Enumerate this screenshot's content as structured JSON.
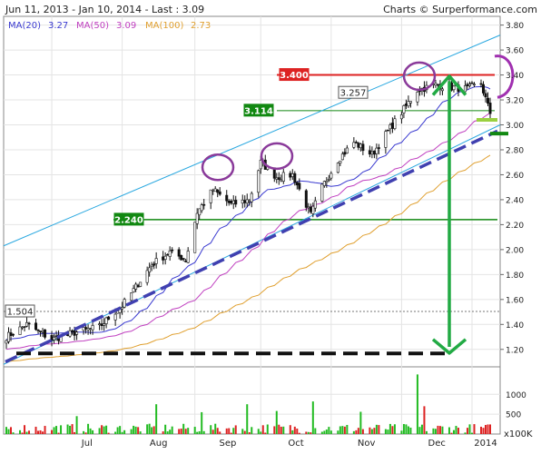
{
  "header": {
    "range_text": "Jun 11, 2013 - Jan 10, 2014 - Last : 3.09",
    "credit_text": "Charts © Surperformance.com"
  },
  "legend": [
    {
      "text": "MA(20)",
      "value": "3.27",
      "color": "#3a3ad0"
    },
    {
      "text": "MA(50)",
      "value": "3.09",
      "color": "#c040c0"
    },
    {
      "text": "MA(100)",
      "value": "2.73",
      "color": "#e0a030"
    }
  ],
  "chart_data": {
    "type": "candlestick",
    "x_ticks": [
      "Jul",
      "Aug",
      "Sep",
      "Oct",
      "Nov",
      "Dec",
      "2014"
    ],
    "y_ticks": [
      "3.80",
      "3.60",
      "3.40",
      "3.20",
      "3.00",
      "2.80",
      "2.60",
      "2.40",
      "2.20",
      "2.00",
      "1.80",
      "1.60",
      "1.40",
      "1.20"
    ],
    "ylim": [
      1.06,
      3.87
    ],
    "last": 3.09,
    "price_labels": [
      {
        "text": "3.400",
        "value": 3.4,
        "color": "#dd2222"
      },
      {
        "text": "3.257",
        "value": 3.257,
        "color": "#ffffff"
      },
      {
        "text": "3.114",
        "value": 3.114,
        "color": "#118811"
      },
      {
        "text": "2.240",
        "value": 2.24,
        "color": "#118811"
      },
      {
        "text": "1.504",
        "value": 1.504,
        "color": "#ffffff"
      }
    ],
    "price_anchors": {
      "dates": [
        "2013-06-11",
        "2013-06-20",
        "2013-07-01",
        "2013-07-10",
        "2013-07-22",
        "2013-07-30",
        "2013-08-01",
        "2013-08-07",
        "2013-08-14",
        "2013-08-22",
        "2013-08-29",
        "2013-09-03",
        "2013-09-10",
        "2013-09-18",
        "2013-09-26",
        "2013-10-01",
        "2013-10-08",
        "2013-10-15",
        "2013-10-23",
        "2013-10-28",
        "2013-11-04",
        "2013-11-11",
        "2013-11-19",
        "2013-11-26",
        "2013-12-02",
        "2013-12-09",
        "2013-12-17",
        "2013-12-24",
        "2013-12-31",
        "2014-01-06",
        "2014-01-10"
      ],
      "close": [
        1.3,
        1.4,
        1.28,
        1.33,
        1.38,
        1.52,
        1.55,
        1.7,
        1.88,
        1.98,
        1.92,
        2.3,
        2.48,
        2.36,
        2.4,
        2.7,
        2.58,
        2.6,
        2.28,
        2.5,
        2.72,
        2.86,
        2.76,
        2.95,
        3.1,
        3.28,
        3.32,
        3.3,
        3.29,
        3.33,
        3.09
      ]
    },
    "volume": {
      "unit": "x100K",
      "y_ticks": [
        "1000",
        "500"
      ],
      "spikes": [
        {
          "date": "2013-07-12",
          "value": 450
        },
        {
          "date": "2013-08-16",
          "value": 750
        },
        {
          "date": "2013-09-05",
          "value": 550
        },
        {
          "date": "2013-09-25",
          "value": 750
        },
        {
          "date": "2013-10-08",
          "value": 580
        },
        {
          "date": "2013-10-24",
          "value": 820
        },
        {
          "date": "2013-11-14",
          "value": 560
        },
        {
          "date": "2013-12-09",
          "value": 1500
        },
        {
          "date": "2013-12-12",
          "value": 700
        }
      ]
    }
  }
}
